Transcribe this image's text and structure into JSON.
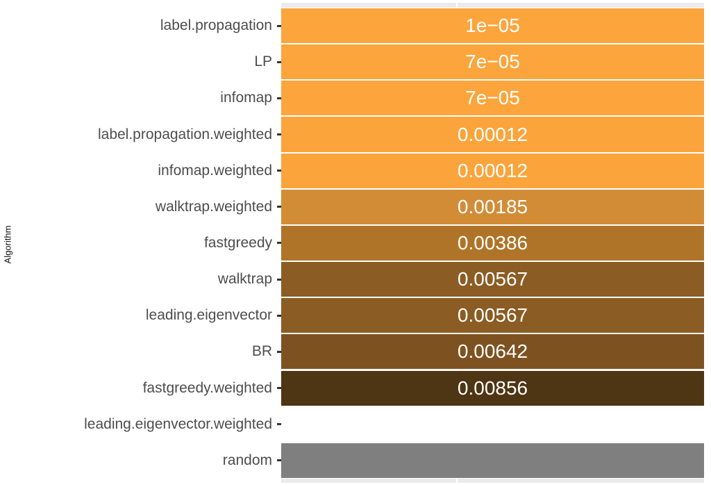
{
  "axis": {
    "y_title": "Algorithm"
  },
  "colors": {
    "panel_background": "#EBEBEB",
    "gridline": "#FFFFFF",
    "tile_border": "#FFFFFF",
    "value_text": "#FFFFFF",
    "axis_text": "#4D4D4D",
    "axis_tick": "#333333",
    "na_white_tile": "#FFFFFF",
    "random_tile": "#7F7F7F",
    "gradient_low": "#FCA53C",
    "gradient_high": "#4E3513"
  },
  "rows": [
    {
      "label": "label.propagation",
      "value_label": "1e−05",
      "color": "#FCA53C"
    },
    {
      "label": "LP",
      "value_label": "7e−05",
      "color": "#FCA53C"
    },
    {
      "label": "infomap",
      "value_label": "7e−05",
      "color": "#FCA53C"
    },
    {
      "label": "label.propagation.weighted",
      "value_label": "0.00012",
      "color": "#FBA43B"
    },
    {
      "label": "infomap.weighted",
      "value_label": "0.00012",
      "color": "#FBA43B"
    },
    {
      "label": "walktrap.weighted",
      "value_label": "0.00185",
      "color": "#D38C36"
    },
    {
      "label": "fastgreedy",
      "value_label": "0.00386",
      "color": "#B07428"
    },
    {
      "label": "walktrap",
      "value_label": "0.00567",
      "color": "#8B5C23"
    },
    {
      "label": "leading.eigenvector",
      "value_label": "0.00567",
      "color": "#8B5C23"
    },
    {
      "label": "BR",
      "value_label": "0.00642",
      "color": "#7E5220"
    },
    {
      "label": "fastgreedy.weighted",
      "value_label": "0.00856",
      "color": "#4E3513"
    },
    {
      "label": "leading.eigenvector.weighted",
      "value_label": "",
      "color": "#FFFFFF"
    },
    {
      "label": "random",
      "value_label": "",
      "color": "#7F7F7F"
    }
  ],
  "chart_data": {
    "type": "heatmap",
    "title": "",
    "xlabel": "",
    "ylabel": "Algorithm",
    "legend": "none",
    "grid": "single vertical white major gridline visible in panel strips",
    "orientation": "horizontal full-width tiles, one per category",
    "categories": [
      "label.propagation",
      "LP",
      "infomap",
      "label.propagation.weighted",
      "infomap.weighted",
      "walktrap.weighted",
      "fastgreedy",
      "walktrap",
      "leading.eigenvector",
      "BR",
      "fastgreedy.weighted",
      "leading.eigenvector.weighted",
      "random"
    ],
    "values": [
      1e-05,
      7e-05,
      7e-05,
      0.00012,
      0.00012,
      0.00185,
      0.00386,
      0.00567,
      0.00567,
      0.00642,
      0.00856,
      null,
      null
    ],
    "value_labels": [
      "1e−05",
      "7e−05",
      "7e−05",
      "0.00012",
      "0.00012",
      "0.00185",
      "0.00386",
      "0.00567",
      "0.00567",
      "0.00642",
      "0.00856",
      "",
      ""
    ],
    "fill_scale": "linear gradient from #FCA53C (low p-value) to #4E3513 (high p-value); NA rows: white and gray50"
  }
}
